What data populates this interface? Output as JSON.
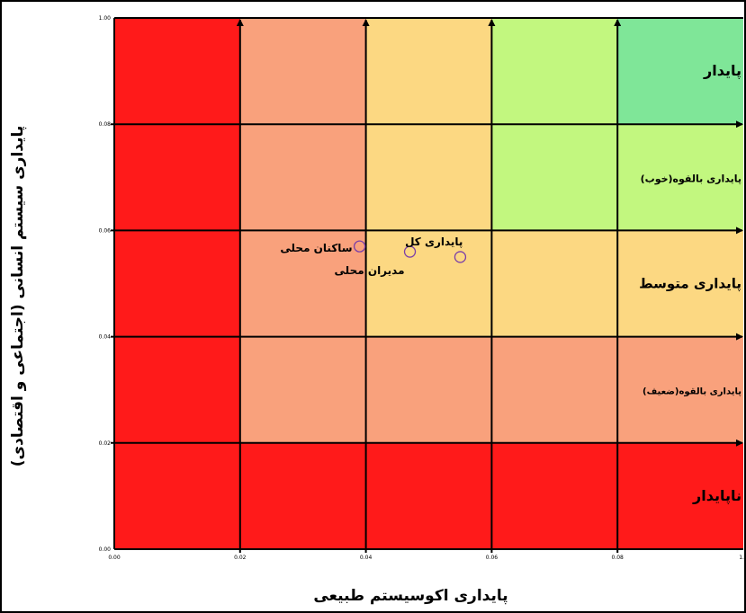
{
  "chart_data": {
    "type": "scatter",
    "title": "",
    "xlabel": "پایداری اکوسیستم طبیعی",
    "ylabel": "پایداری سیستم انسانی (اجتماعی و اقتصادی)",
    "xlim": [
      0,
      1
    ],
    "ylim": [
      0,
      1
    ],
    "x_ticks": [
      "0.00",
      "0.02",
      "0.04",
      "0.06",
      "0.08",
      "1.0"
    ],
    "y_ticks": [
      "0.00",
      "0.02",
      "0.04",
      "0.06",
      "0.08",
      "1.00"
    ],
    "grid": true,
    "zones": {
      "columns": [
        0,
        0.2,
        0.4,
        0.6,
        0.8,
        1.0
      ],
      "rows": [
        0,
        0.2,
        0.4,
        0.6,
        0.8,
        1.0
      ],
      "colors": [
        [
          "#ff1a1a",
          "#ff1a1a",
          "#ff1a1a",
          "#ff1a1a",
          "#ff1a1a"
        ],
        [
          "#ff1a1a",
          "#f9a17c",
          "#f9a17c",
          "#f9a17c",
          "#f9a17c"
        ],
        [
          "#ff1a1a",
          "#f9a17c",
          "#fcd882",
          "#fcd882",
          "#fcd882"
        ],
        [
          "#ff1a1a",
          "#f9a17c",
          "#fcd882",
          "#c2f77f",
          "#c2f77f"
        ],
        [
          "#ff1a1a",
          "#f9a17c",
          "#fcd882",
          "#c2f77f",
          "#7fe698"
        ]
      ]
    },
    "zone_labels": [
      {
        "text": "پایدار",
        "y": 0.9
      },
      {
        "text": "پایداری بالقوه(خوب)",
        "y": 0.7
      },
      {
        "text": "پایداری متوسط",
        "y": 0.5
      },
      {
        "text": "پایداری بالقوه(ضعیف)",
        "y": 0.3
      },
      {
        "text": "ناپایدار",
        "y": 0.1
      }
    ],
    "points": [
      {
        "label": "ساکنان محلی",
        "x": 0.39,
        "y": 0.57
      },
      {
        "label": "مدیران محلی",
        "x": 0.47,
        "y": 0.56
      },
      {
        "label": "پایداری کل",
        "x": 0.55,
        "y": 0.55
      }
    ],
    "colors": {
      "frame": "#000000",
      "marker": "#7b3fa8"
    }
  }
}
